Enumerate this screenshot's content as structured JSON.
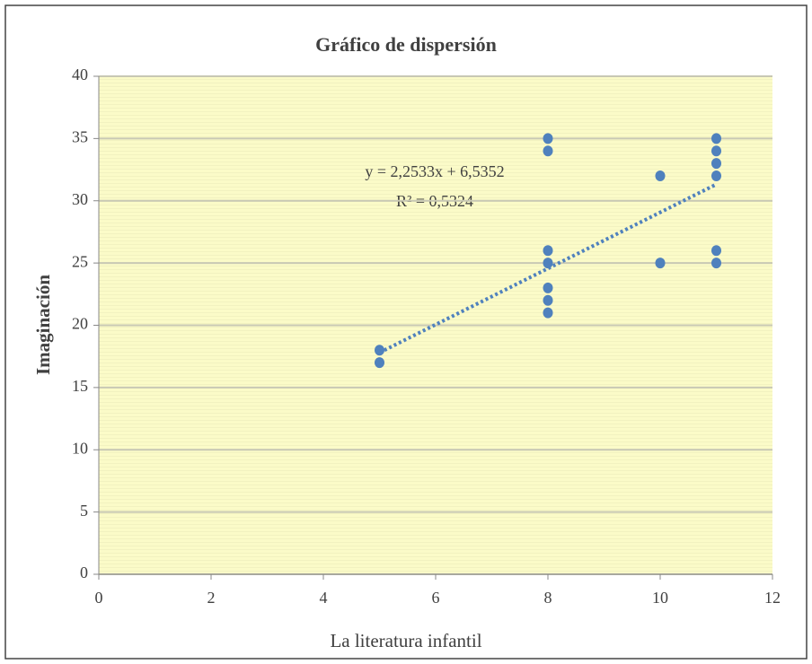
{
  "chart_data": {
    "type": "scatter",
    "title": "Gráfico de dispersión",
    "x_label": "La literatura infantil",
    "y_label": "Imaginación",
    "series": [
      {
        "name": "Imaginación",
        "color": "#4f81bd",
        "x": [
          5,
          5,
          8,
          8,
          8,
          8,
          8,
          8,
          8,
          10,
          10,
          11,
          11,
          11,
          11,
          11,
          11
        ],
        "values": [
          18,
          17,
          35,
          34,
          26,
          25,
          23,
          22,
          21,
          32,
          25,
          35,
          34,
          33,
          32,
          26,
          25
        ]
      }
    ],
    "trendline": {
      "slope": 2.2533,
      "intercept": 6.5352,
      "equation": "y = 2,2533x  + 6,5352",
      "r2": "R² = 0,5324"
    },
    "xlim": [
      0,
      12
    ],
    "xticks": [
      0,
      2,
      4,
      6,
      8,
      10,
      12
    ],
    "ylim": [
      0,
      40
    ],
    "yticks": [
      0,
      5,
      10,
      15,
      20,
      25,
      30,
      35,
      40
    ],
    "grid": true
  }
}
